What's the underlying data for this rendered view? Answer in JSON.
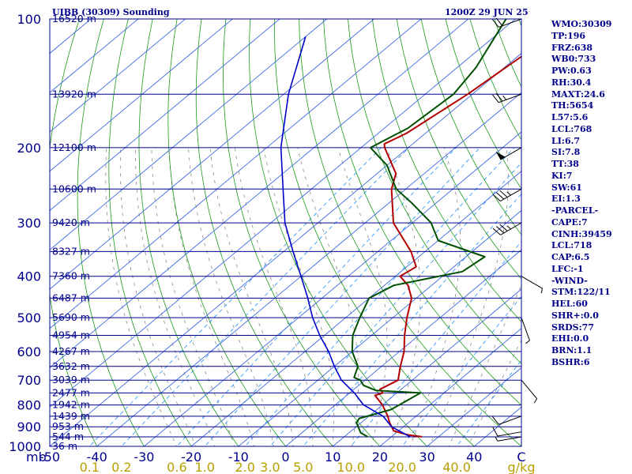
{
  "header": {
    "title_left": "UIBB (30309) Sounding",
    "title_right": "1200Z 29 JUN 25"
  },
  "stats": [
    "WMO:30309",
    "TP:196",
    "FRZ:638",
    "WB0:733",
    "PW:0.63",
    "RH:30.4",
    "MAXT:24.6",
    "TH:5654",
    "L57:5.6",
    "LCL:768",
    "LI:6.7",
    "SI:7.8",
    "TT:38",
    "KI:7",
    "SW:61",
    "EI:1.3",
    "-PARCEL-",
    "CAPE:7",
    "CINH:39459",
    "LCL:718",
    "CAP:6.5",
    "LFC:-1",
    "-WIND-",
    "STM:122/11",
    "HEL:60",
    "SHR+:0.0",
    "SRDS:77",
    "EHI:0.0",
    "BRN:1.1",
    "BSHR:6"
  ],
  "colors": {
    "isobar": "#00008b",
    "isotherm": "#4169e1",
    "dry_adiabat": "#1a9a1a",
    "moist_adiabat": "#8a8a8a",
    "mixing_ratio": "#1e90ff",
    "temperature": "#b40000",
    "dewpoint": "#005000",
    "parcel": "#0000cd",
    "wind": "#000000",
    "axis_text": "#00008b",
    "mixing_text": "#b8a000"
  },
  "chart_data": {
    "type": "skew-t",
    "y_axis": {
      "quantity": "pressure",
      "unit": "mb",
      "scale": "log",
      "range": [
        1000,
        100
      ],
      "tick_labels": [
        "100",
        "200",
        "300",
        "400",
        "500",
        "600",
        "700",
        "800",
        "900",
        "1000"
      ]
    },
    "x_axis": {
      "quantity": "temperature",
      "unit": "C",
      "range": [
        -50,
        50
      ],
      "tick_labels": [
        "-50",
        "-40",
        "-30",
        "-20",
        "-10",
        "0",
        "10",
        "20",
        "30",
        "40",
        "C"
      ],
      "unit_label_left": "mb"
    },
    "mixing_ratio_axis": {
      "unit": "g/kg",
      "tick_labels": [
        "0.1",
        "0.2",
        "0.6",
        "1.0",
        "2.0",
        "3.0",
        "5.0",
        "10.0",
        "20.0",
        "40.0",
        "g/kg"
      ]
    },
    "height_labels": [
      {
        "pressure": 100,
        "label": "16520 m"
      },
      {
        "pressure": 150,
        "label": "13920 m"
      },
      {
        "pressure": 200,
        "label": "12100 m"
      },
      {
        "pressure": 250,
        "label": "10600 m"
      },
      {
        "pressure": 300,
        "label": "9420 m"
      },
      {
        "pressure": 350,
        "label": "8327 m"
      },
      {
        "pressure": 400,
        "label": "7360 m"
      },
      {
        "pressure": 450,
        "label": "6487 m"
      },
      {
        "pressure": 500,
        "label": "5690 m"
      },
      {
        "pressure": 550,
        "label": "4954 m"
      },
      {
        "pressure": 600,
        "label": "4267 m"
      },
      {
        "pressure": 650,
        "label": "3632 m"
      },
      {
        "pressure": 700,
        "label": "3039 m"
      },
      {
        "pressure": 750,
        "label": "2477 m"
      },
      {
        "pressure": 800,
        "label": "1942 m"
      },
      {
        "pressure": 850,
        "label": "1439 m"
      },
      {
        "pressure": 900,
        "label": "953 m"
      },
      {
        "pressure": 950,
        "label": "544 m"
      },
      {
        "pressure": 1000,
        "label": "36 m"
      }
    ],
    "series": [
      {
        "key": "temperature",
        "points": [
          [
            950,
            26.5
          ],
          [
            940,
            23
          ],
          [
            920,
            19
          ],
          [
            880,
            16
          ],
          [
            850,
            14
          ],
          [
            800,
            10
          ],
          [
            760,
            6
          ],
          [
            750,
            7
          ],
          [
            735,
            5.5
          ],
          [
            700,
            7
          ],
          [
            650,
            4
          ],
          [
            600,
            1
          ],
          [
            550,
            -3
          ],
          [
            500,
            -7
          ],
          [
            450,
            -11
          ],
          [
            420,
            -15
          ],
          [
            400,
            -19
          ],
          [
            380,
            -18
          ],
          [
            350,
            -23
          ],
          [
            300,
            -34
          ],
          [
            250,
            -43
          ],
          [
            230,
            -46
          ],
          [
            200,
            -55
          ],
          [
            196,
            -56
          ],
          [
            185,
            -54
          ],
          [
            150,
            -51
          ],
          [
            120,
            -49
          ],
          [
            100,
            -48
          ]
        ]
      },
      {
        "key": "dewpoint",
        "points": [
          [
            950,
            15
          ],
          [
            930,
            12.5
          ],
          [
            880,
            9
          ],
          [
            860,
            8.5
          ],
          [
            820,
            13
          ],
          [
            750,
            15
          ],
          [
            740,
            5
          ],
          [
            720,
            1
          ],
          [
            700,
            -1
          ],
          [
            690,
            -3
          ],
          [
            650,
            -5
          ],
          [
            600,
            -10
          ],
          [
            550,
            -14
          ],
          [
            500,
            -17
          ],
          [
            450,
            -20
          ],
          [
            420,
            -18
          ],
          [
            390,
            -7
          ],
          [
            360,
            -6
          ],
          [
            330,
            -20
          ],
          [
            300,
            -26
          ],
          [
            270,
            -35
          ],
          [
            250,
            -42
          ],
          [
            220,
            -50
          ],
          [
            200,
            -58
          ],
          [
            180,
            -55
          ],
          [
            150,
            -54
          ],
          [
            130,
            -56
          ],
          [
            100,
            -62
          ]
        ]
      },
      {
        "key": "parcel",
        "points": [
          [
            950,
            24
          ],
          [
            900,
            17.5
          ],
          [
            850,
            13
          ],
          [
            800,
            6
          ],
          [
            750,
            1
          ],
          [
            700,
            -5
          ],
          [
            650,
            -10
          ],
          [
            600,
            -15
          ],
          [
            550,
            -21
          ],
          [
            500,
            -27
          ],
          [
            450,
            -33
          ],
          [
            400,
            -40
          ],
          [
            350,
            -48
          ],
          [
            300,
            -57
          ],
          [
            250,
            -66
          ],
          [
            200,
            -77
          ],
          [
            150,
            -89
          ],
          [
            110,
            -100
          ]
        ]
      }
    ],
    "wind_barbs": [
      {
        "pressure": 100,
        "direction": 250,
        "speed": 20
      },
      {
        "pressure": 150,
        "direction": 250,
        "speed": 25
      },
      {
        "pressure": 200,
        "direction": 240,
        "speed": 50
      },
      {
        "pressure": 250,
        "direction": 240,
        "speed": 35
      },
      {
        "pressure": 300,
        "direction": 240,
        "speed": 35
      },
      {
        "pressure": 400,
        "direction": 120,
        "speed": 5
      },
      {
        "pressure": 500,
        "direction": 160,
        "speed": 5
      },
      {
        "pressure": 700,
        "direction": 140,
        "speed": 5
      },
      {
        "pressure": 850,
        "direction": 250,
        "speed": 10
      },
      {
        "pressure": 925,
        "direction": 260,
        "speed": 10
      },
      {
        "pressure": 950,
        "direction": 260,
        "speed": 5
      }
    ]
  }
}
